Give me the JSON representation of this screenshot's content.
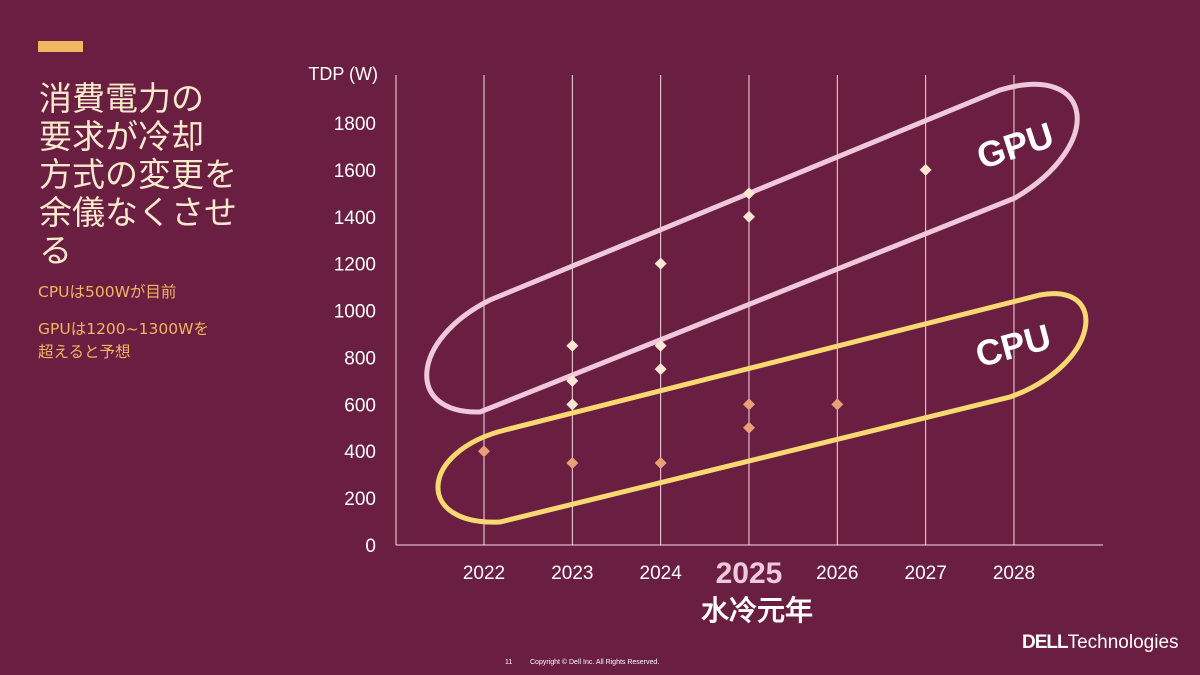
{
  "slide": {
    "title_lines": [
      "消費電力の",
      "要求が冷却",
      "方式の変更を",
      "余儀なくさせる"
    ],
    "notes": [
      "CPUは500Wが目前",
      "GPUは1200~1300Wを",
      "超えると予想"
    ],
    "page_number": "11",
    "copyright": "Copyright © Dell Inc. All Rights Reserved.",
    "logo_text": "DELL Technologies",
    "highlight_label": "水冷元年"
  },
  "chart_data": {
    "type": "scatter",
    "ylabel": "TDP (W)",
    "xlabel": "",
    "ylim": [
      0,
      1900
    ],
    "yticks": [
      0,
      200,
      400,
      600,
      800,
      1000,
      1200,
      1400,
      1600,
      1800
    ],
    "categories": [
      "2022",
      "2023",
      "2024",
      "2025",
      "2026",
      "2027",
      "2028"
    ],
    "highlight_category": "2025",
    "grid": "vertical",
    "series": [
      {
        "name": "GPU",
        "color": "#fbe6d2",
        "points": [
          [
            "2023",
            850
          ],
          [
            "2023",
            700
          ],
          [
            "2023",
            600
          ],
          [
            "2024",
            1200
          ],
          [
            "2024",
            850
          ],
          [
            "2024",
            750
          ],
          [
            "2025",
            1500
          ],
          [
            "2025",
            1400
          ],
          [
            "2027",
            1600
          ]
        ]
      },
      {
        "name": "CPU",
        "color": "#e8a078",
        "points": [
          [
            "2022",
            400
          ],
          [
            "2023",
            350
          ],
          [
            "2024",
            350
          ],
          [
            "2025",
            600
          ],
          [
            "2025",
            500
          ],
          [
            "2026",
            600
          ]
        ]
      }
    ],
    "annotations": [
      {
        "text": "GPU",
        "color": "#f0c8dc"
      },
      {
        "text": "CPU",
        "color": "#f8d870"
      }
    ]
  }
}
